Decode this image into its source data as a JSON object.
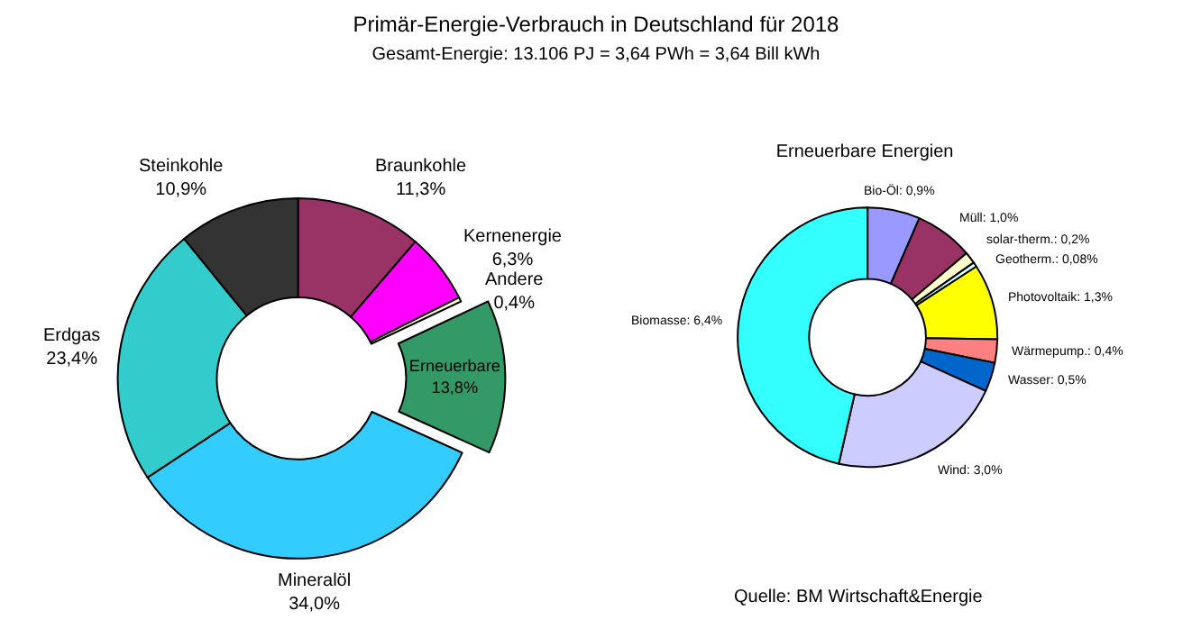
{
  "chart_data": [
    {
      "type": "donut",
      "title": "Primär-Energie-Verbrauch in Deutschland für 2018",
      "subtitle": "Gesamt-Energie: 13.106 PJ = 3,64 PWh = 3,64 Bill kWh",
      "categories": [
        "Braunkohle",
        "Kernenergie",
        "Andere",
        "Erneuerbare",
        "Mineralöl",
        "Erdgas",
        "Steinkohle"
      ],
      "values": [
        11.3,
        6.3,
        0.4,
        13.8,
        34.0,
        23.4,
        10.9
      ],
      "value_labels": [
        "11,3%",
        "6,3%",
        "0,4%",
        "13,8%",
        "34,0%",
        "23,4%",
        "10,9%"
      ],
      "colors": [
        "#993366",
        "#ff00ff",
        "#ffffcc",
        "#339966",
        "#33ccff",
        "#33cccc",
        "#333333"
      ],
      "legend": false
    },
    {
      "type": "donut",
      "title": "Erneuerbare Energien",
      "categories": [
        "Bio-Öl",
        "Müll",
        "solar-therm.",
        "Geotherm.",
        "Photovoltaik",
        "Wärmepump.",
        "Wasser",
        "Wind",
        "Biomasse"
      ],
      "values": [
        0.9,
        1.0,
        0.2,
        0.08,
        1.3,
        0.4,
        0.5,
        3.0,
        6.4
      ],
      "value_labels": [
        "0,9%",
        "1,0%",
        "0,2%",
        "0,08%",
        "1,3%",
        "0,4%",
        "0,5%",
        "3,0%",
        "6,4%"
      ],
      "colors": [
        "#9999ff",
        "#993366",
        "#ffffcc",
        "#ccffff",
        "#ffff00",
        "#ff8080",
        "#0066cc",
        "#ccccff",
        "#33ffff"
      ],
      "annotations": [
        "Quelle: BM Wirtschaft&Energie"
      ],
      "legend": false
    }
  ]
}
